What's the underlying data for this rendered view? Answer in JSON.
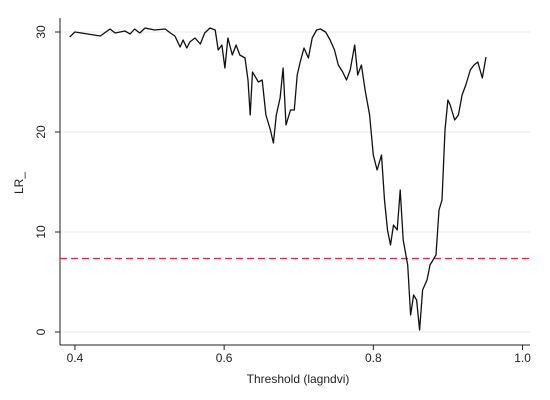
{
  "chart_data": {
    "type": "line",
    "x_label": "Threshold (lagndvi)",
    "y_label": "LR_",
    "x": [
      0.393,
      0.4,
      0.434,
      0.447,
      0.454,
      0.467,
      0.474,
      0.48,
      0.487,
      0.494,
      0.507,
      0.521,
      0.528,
      0.534,
      0.541,
      0.545,
      0.55,
      0.554,
      0.561,
      0.568,
      0.574,
      0.581,
      0.588,
      0.592,
      0.597,
      0.601,
      0.605,
      0.611,
      0.616,
      0.621,
      0.628,
      0.632,
      0.635,
      0.638,
      0.646,
      0.651,
      0.656,
      0.662,
      0.666,
      0.67,
      0.675,
      0.679,
      0.683,
      0.689,
      0.694,
      0.698,
      0.702,
      0.707,
      0.713,
      0.718,
      0.724,
      0.729,
      0.736,
      0.742,
      0.748,
      0.753,
      0.759,
      0.764,
      0.769,
      0.775,
      0.779,
      0.784,
      0.789,
      0.795,
      0.8,
      0.805,
      0.811,
      0.815,
      0.819,
      0.823,
      0.827,
      0.832,
      0.836,
      0.84,
      0.846,
      0.85,
      0.854,
      0.858,
      0.862,
      0.866,
      0.872,
      0.876,
      0.88,
      0.884,
      0.888,
      0.892,
      0.896,
      0.9,
      0.903,
      0.909,
      0.914,
      0.919,
      0.924,
      0.93,
      0.935,
      0.94,
      0.946,
      0.951
    ],
    "values": [
      29.5,
      30.0,
      29.6,
      30.3,
      29.9,
      30.1,
      29.8,
      30.3,
      29.9,
      30.4,
      30.2,
      30.3,
      29.9,
      29.6,
      28.5,
      29.2,
      28.4,
      29.0,
      29.4,
      28.8,
      29.9,
      30.4,
      30.2,
      28.2,
      28.7,
      26.4,
      29.4,
      27.7,
      28.7,
      27.7,
      27.4,
      25.2,
      21.7,
      26.0,
      25.0,
      25.2,
      21.7,
      20.2,
      18.9,
      21.7,
      23.4,
      26.4,
      20.7,
      22.2,
      22.2,
      25.7,
      27.0,
      28.4,
      27.4,
      29.4,
      30.2,
      30.3,
      30.0,
      29.2,
      28.2,
      26.7,
      26.0,
      25.2,
      26.2,
      28.7,
      25.7,
      26.7,
      24.2,
      21.7,
      17.7,
      16.2,
      17.7,
      13.2,
      10.2,
      8.7,
      10.7,
      10.2,
      14.2,
      9.2,
      6.7,
      1.7,
      3.7,
      3.2,
      0.2,
      4.2,
      5.2,
      6.7,
      7.2,
      7.7,
      12.2,
      13.2,
      20.2,
      23.2,
      22.7,
      21.2,
      21.7,
      23.7,
      24.7,
      26.2,
      26.7,
      27.0,
      25.4,
      27.5
    ],
    "color": "#111111",
    "critical_value": 7.35,
    "critical_color": "#e8244b",
    "xlim": [
      0.38,
      1.01
    ],
    "xticks": [
      0.4,
      0.6,
      0.8,
      {
        "value": 1.0,
        "label": "1.0"
      }
    ],
    "ylim": [
      -1.3,
      31.4
    ],
    "yticks": [
      0,
      10,
      20,
      30
    ],
    "grid": true
  }
}
